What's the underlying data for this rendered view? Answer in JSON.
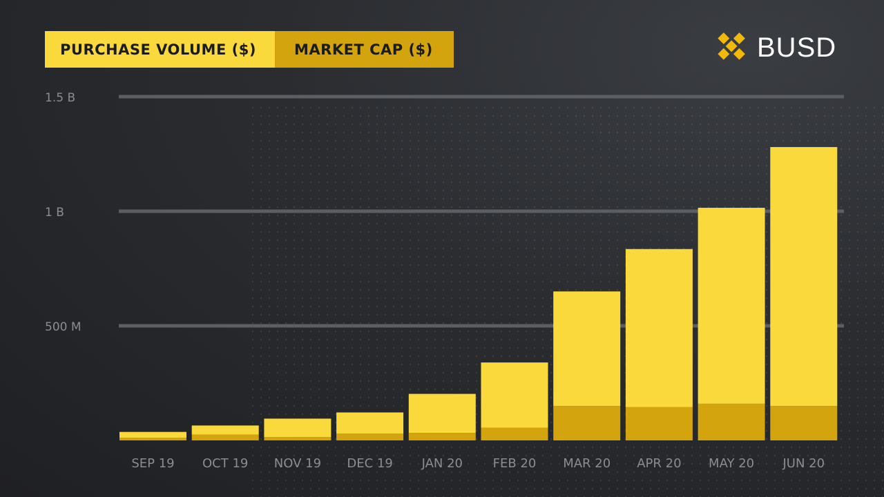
{
  "brand": {
    "name": "BUSD",
    "logo_icon": "binance-diamond-icon"
  },
  "legend": {
    "purchase_label": "PURCHASE VOLUME ($)",
    "cap_label": "MARKET CAP ($)"
  },
  "chart_data": {
    "type": "bar",
    "stacked": true,
    "categories": [
      "SEP 19",
      "OCT 19",
      "NOV 19",
      "DEC 19",
      "JAN 20",
      "FEB 20",
      "MAR 20",
      "APR 20",
      "MAY 20",
      "JUN 20"
    ],
    "series": [
      {
        "name": "MARKET CAP ($)",
        "color": "#d3a40d",
        "values": [
          12,
          25,
          15,
          30,
          33,
          55,
          150,
          145,
          160,
          150
        ]
      },
      {
        "name": "PURCHASE VOLUME ($)",
        "color": "#fad93d",
        "values": [
          25,
          40,
          80,
          92,
          170,
          285,
          500,
          690,
          855,
          1130
        ]
      }
    ],
    "yticks": [
      {
        "value": 500,
        "label": "500 M"
      },
      {
        "value": 1000,
        "label": "1 B"
      },
      {
        "value": 1500,
        "label": "1.5 B"
      }
    ],
    "ylim": [
      0,
      1500
    ],
    "grid": true,
    "legend_position": "top-left"
  }
}
